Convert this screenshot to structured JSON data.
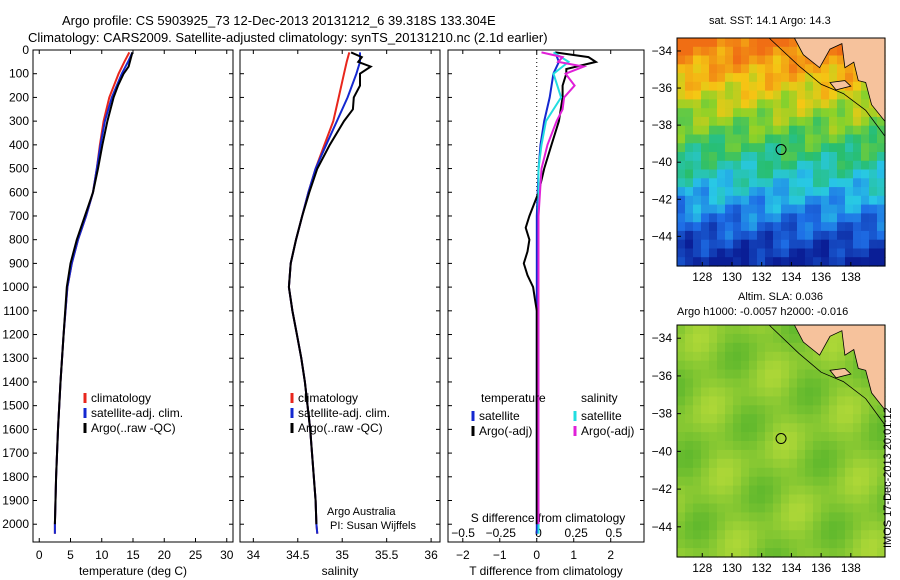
{
  "header": {
    "line1": "Argo profile: CS 5903925_73 12-Dec-2013 20131212_6 39.318S 133.304E",
    "line2": "Climatology: CARS2009. Satellite-adjusted climatology: synTS_20131210.nc (2.1d earlier)"
  },
  "map_top": {
    "title": "sat. SST: 14.1  Argo: 14.3"
  },
  "map_bottom": {
    "title1": "Altim. SLA: 0.036",
    "title2": "Argo h1000: -0.0057 h2000: -0.016"
  },
  "side_label": "IMOS 17-Dec-2013 20:01:12",
  "attribution": {
    "line1": "Argo Australia",
    "line2": "PI: Susan Wijffels"
  },
  "colors": {
    "climatology": "#e8261c",
    "satellite": "#1428d0",
    "argo": "#000000",
    "sal_sat": "#22dde0",
    "sal_argo": "#e020d8",
    "land": "#f6c29c",
    "map_ocean_bg": "#2fa0d8"
  },
  "chart_data": [
    {
      "type": "line",
      "title": "",
      "xlabel": "temperature (deg C)",
      "ylabel": "",
      "xlim": [
        -1,
        31
      ],
      "ylim": [
        2075,
        0
      ],
      "xticks": [
        0,
        5,
        10,
        15,
        20,
        25,
        30
      ],
      "yticks": [
        0,
        100,
        200,
        300,
        400,
        500,
        600,
        700,
        800,
        900,
        1000,
        1100,
        1200,
        1300,
        1400,
        1500,
        1600,
        1700,
        1800,
        1900,
        2000
      ],
      "legend": [
        "climatology",
        "satellite-adj. clim.",
        "Argo(..raw -QC)"
      ],
      "series": [
        {
          "name": "climatology",
          "color": "climatology",
          "depth": [
            10,
            50,
            100,
            200,
            300,
            400,
            500,
            600,
            700,
            800,
            900,
            1000,
            1200,
            1400,
            1600,
            1800,
            2000,
            2040
          ],
          "values": [
            14.4,
            13.6,
            12.7,
            11.2,
            10.3,
            9.7,
            9.2,
            8.6,
            7.5,
            6.2,
            5.2,
            4.5,
            3.9,
            3.4,
            3.0,
            2.7,
            2.5,
            2.5
          ]
        },
        {
          "name": "satellite-adj. clim.",
          "color": "satellite",
          "depth": [
            10,
            50,
            100,
            200,
            300,
            400,
            500,
            600,
            700,
            800,
            900,
            1000,
            1200,
            1400,
            1600,
            1800,
            2000,
            2040
          ],
          "values": [
            14.9,
            14.2,
            13.2,
            11.6,
            10.5,
            9.8,
            9.2,
            8.6,
            7.5,
            6.2,
            5.2,
            4.5,
            3.9,
            3.4,
            3.0,
            2.7,
            2.5,
            2.5
          ]
        },
        {
          "name": "Argo(..raw -QC)",
          "color": "argo",
          "depth": [
            10,
            40,
            70,
            100,
            150,
            200,
            300,
            400,
            500,
            600,
            700,
            800,
            900,
            1000,
            1200,
            1400,
            1600,
            1800,
            2000
          ],
          "values": [
            14.9,
            14.6,
            14.3,
            13.5,
            12.6,
            11.9,
            10.9,
            10.1,
            9.4,
            8.6,
            7.3,
            6.0,
            5.0,
            4.4,
            3.9,
            3.4,
            3.0,
            2.7,
            2.5
          ]
        }
      ]
    },
    {
      "type": "line",
      "title": "",
      "xlabel": "salinity",
      "ylabel": "",
      "xlim": [
        33.85,
        36.1
      ],
      "ylim": [
        2075,
        0
      ],
      "xticks": [
        34,
        34.5,
        35,
        35.5,
        36
      ],
      "legend": [
        "climatology",
        "satellite-adj. clim.",
        "Argo(..raw -QC)"
      ],
      "series": [
        {
          "name": "climatology",
          "color": "climatology",
          "depth": [
            10,
            50,
            100,
            200,
            300,
            400,
            500,
            600,
            700,
            800,
            900,
            1000,
            1100,
            1200,
            1300,
            1400,
            1600,
            1800,
            1900,
            2000,
            2040
          ],
          "values": [
            35.08,
            35.05,
            35.02,
            34.96,
            34.9,
            34.8,
            34.7,
            34.62,
            34.55,
            34.48,
            34.42,
            34.4,
            34.44,
            34.49,
            34.54,
            34.58,
            34.64,
            34.68,
            34.7,
            34.71,
            34.72
          ]
        },
        {
          "name": "satellite-adj. clim.",
          "color": "satellite",
          "depth": [
            10,
            50,
            100,
            200,
            300,
            400,
            500,
            600,
            700,
            800,
            900,
            1000,
            1100,
            1200,
            1300,
            1400,
            1600,
            1800,
            1900,
            2000,
            2040
          ],
          "values": [
            35.2,
            35.2,
            35.16,
            35.06,
            34.94,
            34.82,
            34.7,
            34.62,
            34.55,
            34.48,
            34.42,
            34.4,
            34.44,
            34.49,
            34.54,
            34.58,
            34.64,
            34.68,
            34.7,
            34.71,
            34.72
          ]
        },
        {
          "name": "Argo(..raw -QC)",
          "color": "argo",
          "depth": [
            10,
            30,
            50,
            70,
            100,
            150,
            200,
            250,
            300,
            400,
            500,
            600,
            700,
            800,
            900,
            1000,
            1100,
            1200,
            1300,
            1400,
            1600,
            1800,
            1900,
            2000
          ],
          "values": [
            35.1,
            35.22,
            35.18,
            35.32,
            35.2,
            35.2,
            35.13,
            35.12,
            35.02,
            34.86,
            34.72,
            34.63,
            34.55,
            34.48,
            34.42,
            34.4,
            34.44,
            34.49,
            34.54,
            34.58,
            34.64,
            34.68,
            34.7,
            34.71
          ]
        }
      ]
    },
    {
      "type": "line",
      "title": "",
      "xlabel": "T difference from climatology",
      "xlabel_top": "S difference from climatology",
      "ylabel": "",
      "xlim": [
        -2.4,
        2.9
      ],
      "ylim": [
        2075,
        0
      ],
      "xticks": [
        -2,
        -1,
        0,
        1,
        2
      ],
      "xticks_top": [
        -0.5,
        -0.25,
        0,
        0.25,
        0.5
      ],
      "legend_left_title": "temperature",
      "legend_right_title": "salinity",
      "legend_left": [
        "satellite",
        "Argo(-adj)"
      ],
      "legend_right": [
        "satellite",
        "Argo(-adj)"
      ],
      "series": [
        {
          "name": "temperature satellite",
          "color": "satellite",
          "depth": [
            10,
            50,
            100,
            200,
            300,
            400,
            500,
            700,
            2040
          ],
          "values": [
            0.5,
            0.6,
            0.45,
            0.35,
            0.2,
            0.1,
            0.05,
            0,
            0
          ]
        },
        {
          "name": "temperature Argo(-adj)",
          "color": "argo",
          "depth": [
            10,
            30,
            50,
            80,
            100,
            150,
            200,
            300,
            400,
            500,
            600,
            700,
            750,
            800,
            850,
            900,
            950,
            1000,
            1050,
            1100,
            1200,
            1400,
            1600,
            1800,
            2000
          ],
          "values": [
            0.5,
            1.4,
            1.6,
            0.8,
            0.8,
            0.7,
            0.7,
            0.6,
            0.4,
            0.2,
            0.05,
            -0.2,
            -0.3,
            -0.2,
            -0.25,
            -0.35,
            -0.25,
            -0.1,
            -0.05,
            0,
            0,
            0,
            0,
            0,
            0
          ]
        },
        {
          "name": "salinity satellite",
          "color": "sal_sat",
          "depth": [
            10,
            50,
            100,
            200,
            300,
            400,
            500,
            600,
            700,
            800,
            900,
            1000,
            1200,
            1600,
            2040
          ],
          "values": [
            0.1,
            0.2,
            0.1,
            0.15,
            0.05,
            0.02,
            0,
            0,
            0,
            0,
            0,
            0,
            0,
            0,
            0
          ]
        },
        {
          "name": "salinity Argo(-adj)",
          "color": "sal_argo",
          "depth": [
            10,
            30,
            50,
            70,
            100,
            150,
            200,
            250,
            300,
            400,
            500,
            600,
            700,
            800,
            900,
            1000,
            1200,
            1600,
            2000
          ],
          "values": [
            0.02,
            0.16,
            0.13,
            0.3,
            0.18,
            0.24,
            0.17,
            0.16,
            0.12,
            0.06,
            0.02,
            0.01,
            0,
            0,
            0,
            0,
            0,
            0,
            0
          ]
        }
      ]
    },
    {
      "type": "heatmap",
      "title": "sat. SST: 14.1  Argo: 14.3",
      "xlim": [
        126.3,
        140.3
      ],
      "ylim": [
        -45.6,
        -33.3
      ],
      "xticks": [
        128,
        130,
        132,
        134,
        136,
        138
      ],
      "yticks": [
        -34,
        -36,
        -38,
        -40,
        -42,
        -44
      ],
      "marker": {
        "lon": 133.304,
        "lat": -39.318
      },
      "field": "SST"
    },
    {
      "type": "heatmap",
      "title": "Altim. SLA: 0.036",
      "xlim": [
        126.3,
        140.3
      ],
      "ylim": [
        -45.6,
        -33.3
      ],
      "xticks": [
        128,
        130,
        132,
        134,
        136,
        138
      ],
      "yticks": [
        -34,
        -36,
        -38,
        -40,
        -42,
        -44
      ],
      "marker": {
        "lon": 133.304,
        "lat": -39.318
      },
      "field": "SLA"
    }
  ]
}
